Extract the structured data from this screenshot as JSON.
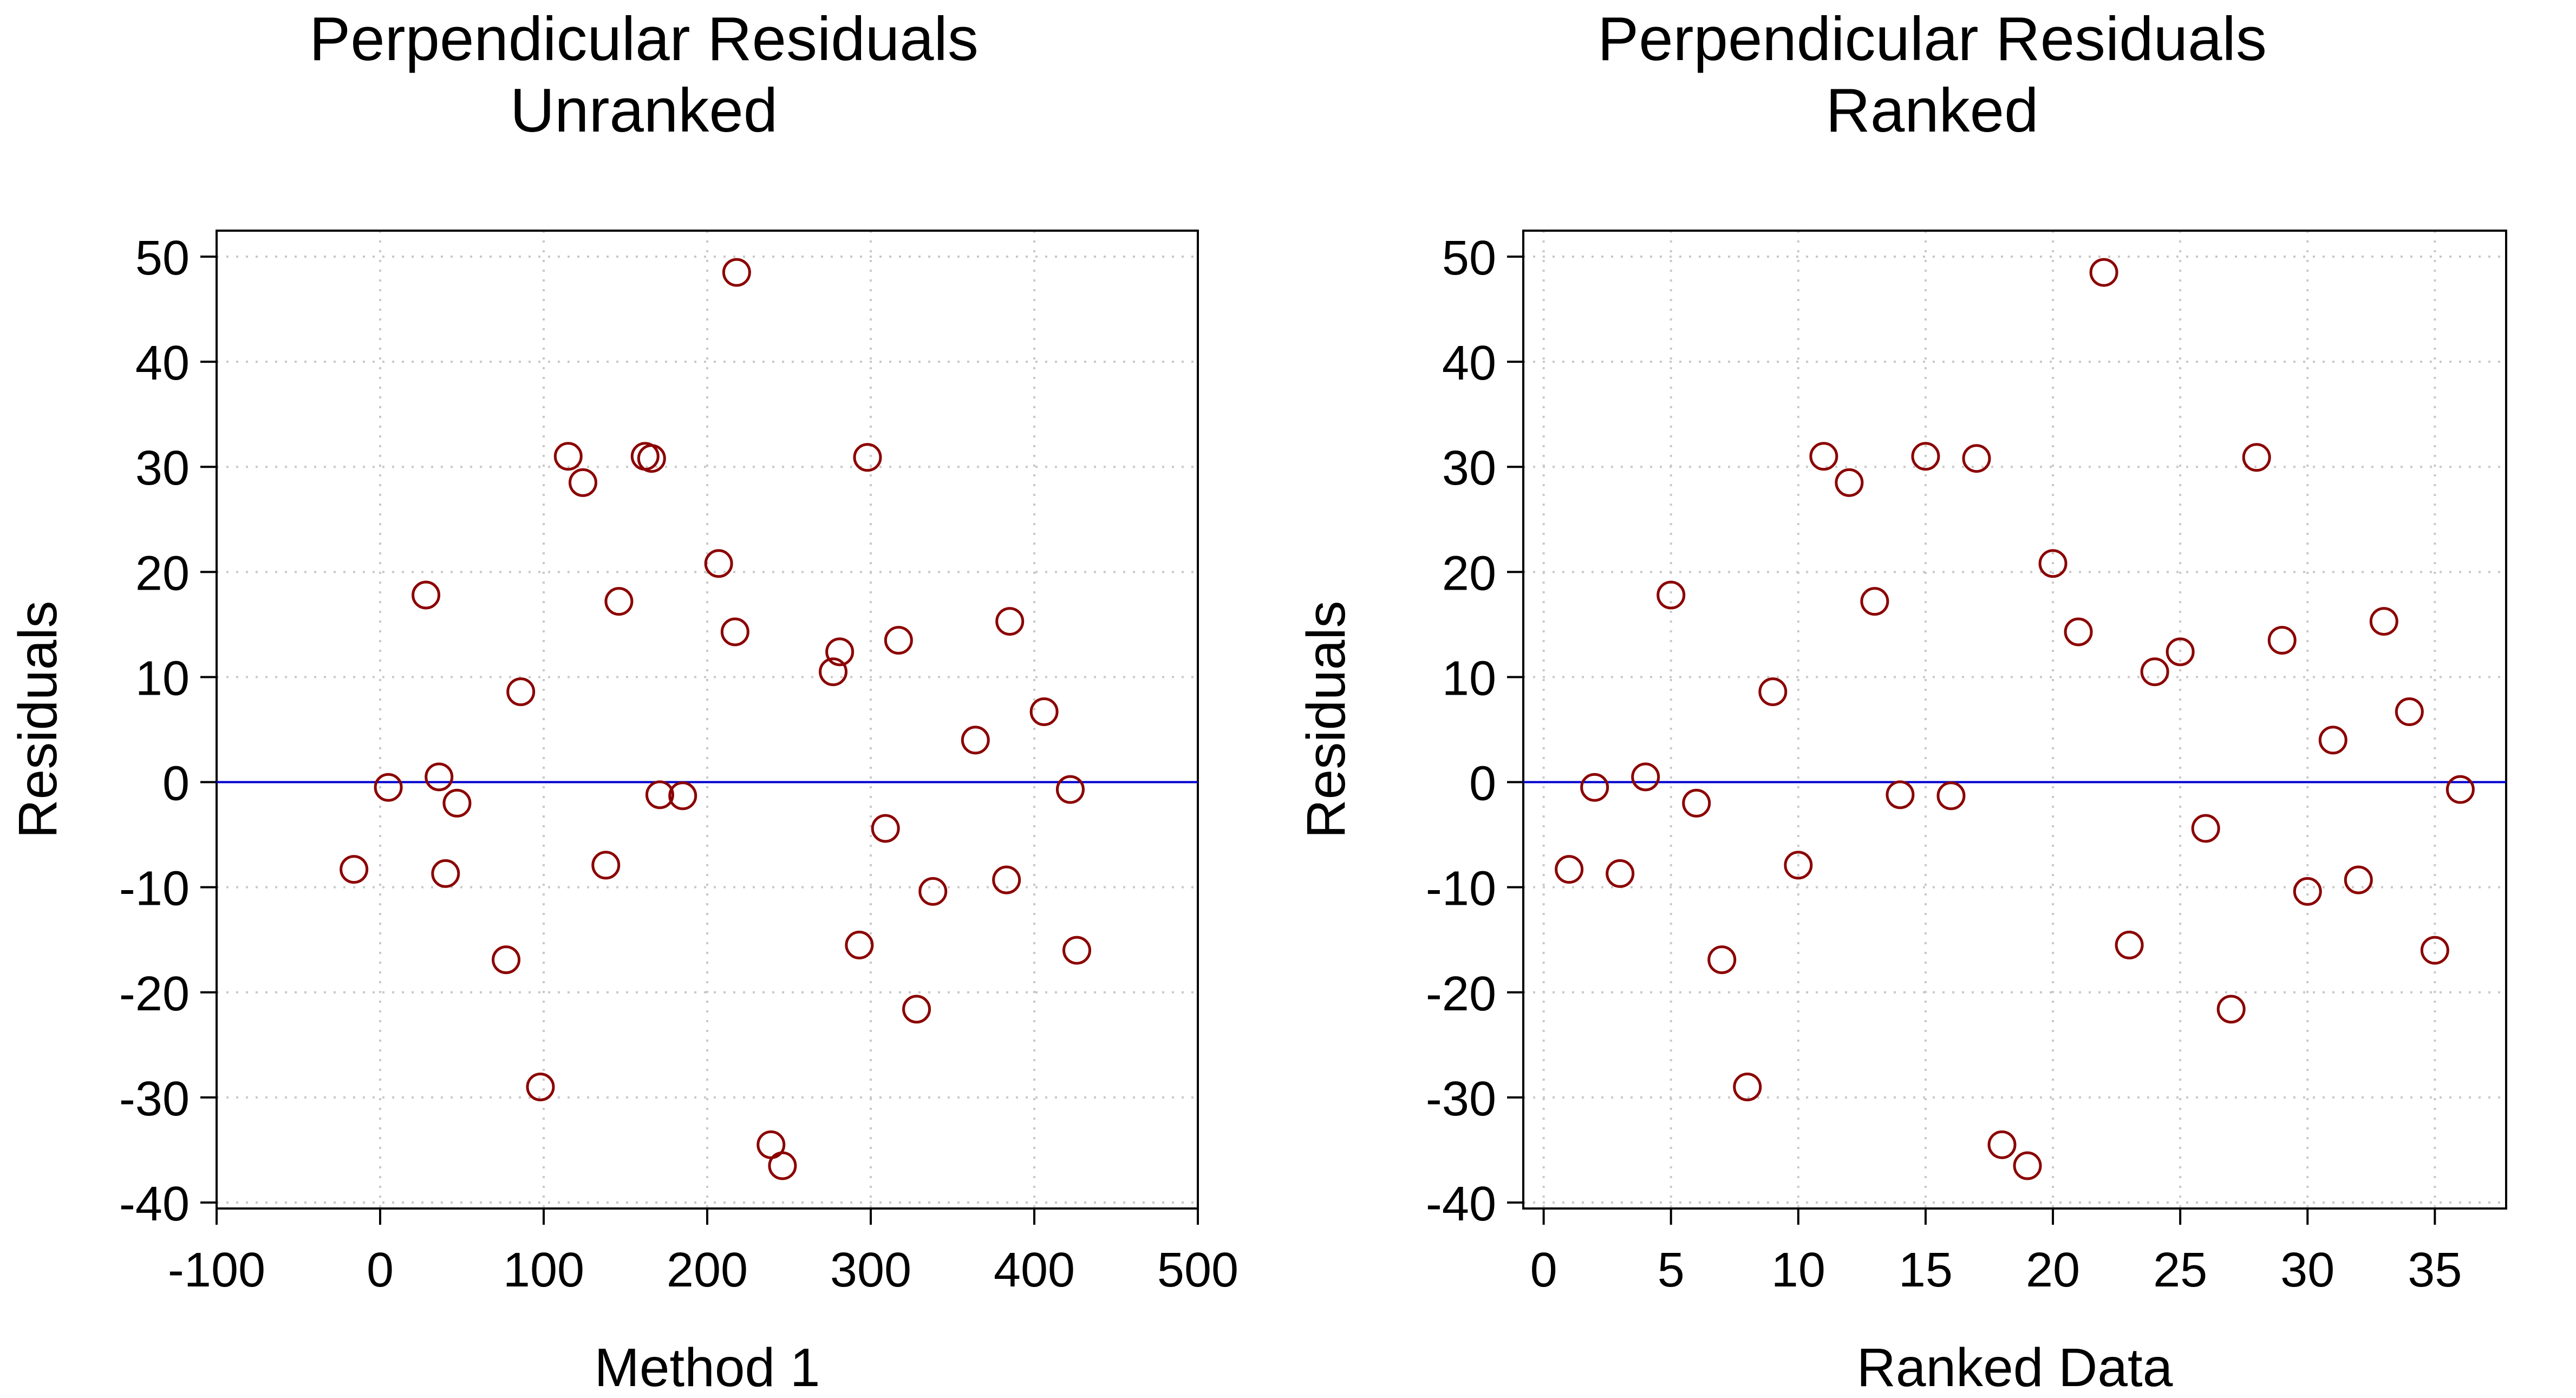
{
  "chart_data": [
    {
      "type": "scatter",
      "title": "Perpendicular Residuals",
      "subtitle": "Unranked",
      "xlabel": "Method 1",
      "ylabel": "Residuals",
      "xlim": [
        -100,
        500
      ],
      "ylim": [
        -40,
        52
      ],
      "xticks": [
        -100,
        0,
        100,
        200,
        300,
        400,
        500
      ],
      "yticks": [
        -40,
        -30,
        -20,
        -10,
        0,
        10,
        20,
        30,
        40,
        50
      ],
      "grid": true,
      "reference_line": 0,
      "marker_color": "#8B0000",
      "line_color": "#0000CD",
      "series": [
        {
          "x": [
            -16,
            5,
            28,
            36,
            40,
            47,
            77,
            86,
            98,
            115,
            124,
            138,
            146,
            162,
            166,
            171,
            185,
            207,
            217,
            218,
            239,
            246,
            277,
            281,
            293,
            298,
            309,
            317,
            328,
            338,
            364,
            383,
            385,
            406,
            422,
            426
          ],
          "y": [
            -8.3,
            -0.5,
            17.8,
            0.5,
            -8.7,
            -2.0,
            -16.9,
            8.6,
            -29.0,
            31.0,
            28.5,
            -7.9,
            17.2,
            31.0,
            30.8,
            -1.2,
            -1.3,
            20.8,
            14.3,
            48.5,
            -34.5,
            -36.5,
            10.5,
            12.4,
            -15.5,
            30.9,
            -4.4,
            13.5,
            -21.6,
            -10.4,
            4.0,
            -9.3,
            15.3,
            6.7,
            -0.7,
            -16.0
          ]
        }
      ]
    },
    {
      "type": "scatter",
      "title": "Perpendicular Residuals",
      "subtitle": "Ranked",
      "xlabel": "Ranked Data",
      "ylabel": "Residuals",
      "xlim": [
        -0.8,
        37.8
      ],
      "ylim": [
        -40,
        52
      ],
      "xticks": [
        0,
        5,
        10,
        15,
        20,
        25,
        30,
        35
      ],
      "yticks": [
        -40,
        -30,
        -20,
        -10,
        0,
        10,
        20,
        30,
        40,
        50
      ],
      "grid": true,
      "reference_line": 0,
      "marker_color": "#8B0000",
      "line_color": "#0000CD",
      "series": [
        {
          "x": [
            1,
            2,
            3,
            4,
            5,
            6,
            7,
            8,
            9,
            10,
            11,
            12,
            13,
            14,
            15,
            16,
            17,
            18,
            19,
            20,
            21,
            22,
            23,
            24,
            25,
            26,
            27,
            28,
            29,
            30,
            31,
            32,
            33,
            34,
            35,
            36
          ],
          "y": [
            -8.3,
            -0.5,
            -8.7,
            0.5,
            17.8,
            -2.0,
            -16.9,
            -29.0,
            8.6,
            -7.9,
            31.0,
            28.5,
            17.2,
            -1.2,
            31.0,
            -1.3,
            30.8,
            -34.5,
            -36.5,
            20.8,
            14.3,
            48.5,
            -15.5,
            10.5,
            12.4,
            -4.4,
            -21.6,
            30.9,
            13.5,
            -10.4,
            4.0,
            -9.3,
            15.3,
            6.7,
            -16.0,
            -0.7
          ]
        }
      ]
    }
  ]
}
